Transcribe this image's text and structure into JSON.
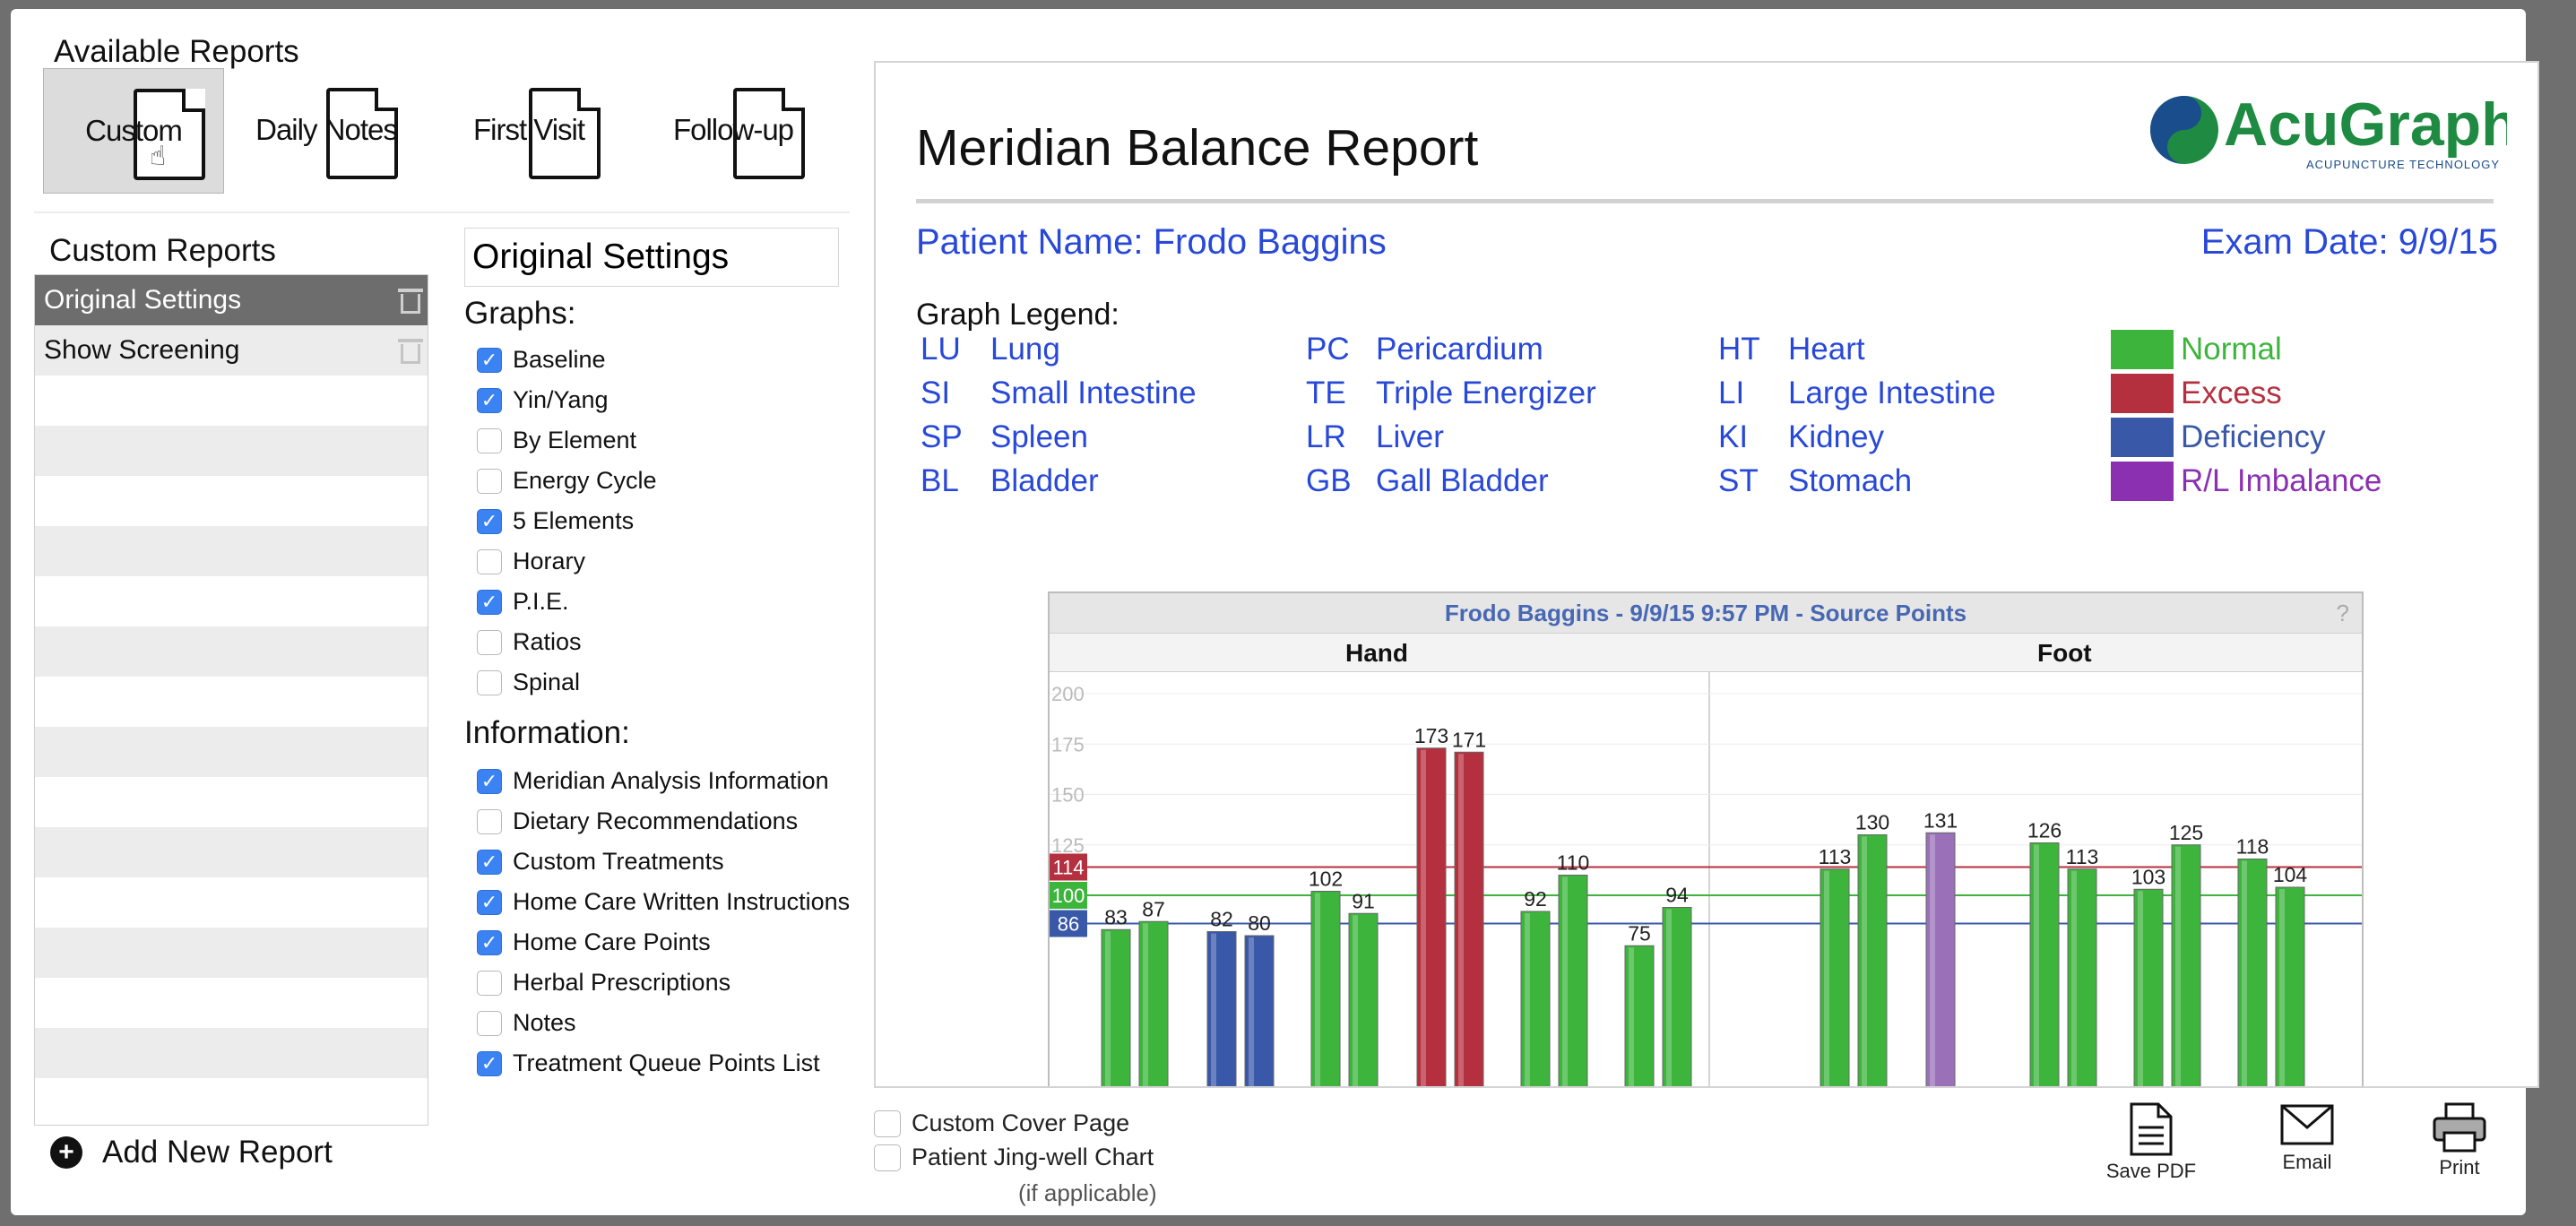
{
  "top_tabs": [
    "",
    "",
    "",
    "",
    "",
    ""
  ],
  "left": {
    "available_title": "Available Reports",
    "reports": [
      {
        "label": "Custom",
        "icon": "document-icon",
        "selected": true
      },
      {
        "label": "Daily Notes",
        "icon": "document-icon",
        "selected": false
      },
      {
        "label": "First Visit",
        "icon": "document-icon",
        "selected": false
      },
      {
        "label": "Follow-up",
        "icon": "document-icon",
        "selected": false
      }
    ],
    "custom_reports_title": "Custom Reports",
    "custom_reports": [
      {
        "label": "Original Settings",
        "selected": true
      },
      {
        "label": "Show Screening",
        "selected": false
      }
    ],
    "add_new_label": "Add New Report"
  },
  "settings": {
    "name_value": "Original Settings",
    "graphs_title": "Graphs:",
    "graphs": [
      {
        "label": "Baseline",
        "checked": true
      },
      {
        "label": "Yin/Yang",
        "checked": true
      },
      {
        "label": "By Element",
        "checked": false
      },
      {
        "label": "Energy Cycle",
        "checked": false
      },
      {
        "label": "5 Elements",
        "checked": true
      },
      {
        "label": "Horary",
        "checked": false
      },
      {
        "label": "P.I.E.",
        "checked": true
      },
      {
        "label": "Ratios",
        "checked": false
      },
      {
        "label": "Spinal",
        "checked": false
      }
    ],
    "info_title": "Information:",
    "information": [
      {
        "label": "Meridian Analysis Information",
        "checked": true
      },
      {
        "label": "Dietary Recommendations",
        "checked": false
      },
      {
        "label": "Custom Treatments",
        "checked": true
      },
      {
        "label": "Home Care Written Instructions",
        "checked": true
      },
      {
        "label": "Home Care Points",
        "checked": true
      },
      {
        "label": "Herbal Prescriptions",
        "checked": false
      },
      {
        "label": "Notes",
        "checked": false
      },
      {
        "label": "Treatment Queue Points List",
        "checked": true
      }
    ]
  },
  "report": {
    "title": "Meridian Balance Report",
    "logo_text": "AcuGraph",
    "logo_tagline": "ACUPUNCTURE TECHNOLOGY",
    "patient": "Patient Name: Frodo Baggins",
    "exam_date": "Exam Date: 9/9/15",
    "legend_title": "Graph Legend:",
    "legend": [
      [
        {
          "code": "LU",
          "name": "Lung"
        },
        {
          "code": "SI",
          "name": "Small Intestine"
        },
        {
          "code": "SP",
          "name": "Spleen"
        },
        {
          "code": "BL",
          "name": "Bladder"
        }
      ],
      [
        {
          "code": "PC",
          "name": "Pericardium"
        },
        {
          "code": "TE",
          "name": "Triple Energizer"
        },
        {
          "code": "LR",
          "name": "Liver"
        },
        {
          "code": "GB",
          "name": "Gall Bladder"
        }
      ],
      [
        {
          "code": "HT",
          "name": "Heart"
        },
        {
          "code": "LI",
          "name": "Large Intestine"
        },
        {
          "code": "KI",
          "name": "Kidney"
        },
        {
          "code": "ST",
          "name": "Stomach"
        }
      ]
    ],
    "status": [
      {
        "label": "Normal",
        "color": "#3db53d"
      },
      {
        "label": "Excess",
        "color": "#b5303f"
      },
      {
        "label": "Deficiency",
        "color": "#3a58a8"
      },
      {
        "label": "R/L Imbalance",
        "color": "#8a30b0"
      }
    ]
  },
  "chart_data": {
    "type": "bar",
    "title": "Frodo Baggins - 9/9/15 9:57 PM - Source Points",
    "help": "?",
    "groups": [
      "Hand",
      "Foot"
    ],
    "ylim": [
      0,
      200
    ],
    "ytick_labels": [
      "200",
      "175",
      "150",
      "125",
      ""
    ],
    "reference_lines": [
      {
        "value": 114,
        "label": "114",
        "color": "#b5303f"
      },
      {
        "value": 100,
        "label": "100",
        "color": "#3db53d"
      },
      {
        "value": 86,
        "label": "86",
        "color": "#3a58a8"
      }
    ],
    "bars": [
      {
        "value": 83,
        "color": "#3db53d"
      },
      {
        "value": 87,
        "color": "#3db53d"
      },
      {
        "value": 82,
        "color": "#3a58a8"
      },
      {
        "value": 80,
        "color": "#3a58a8"
      },
      {
        "value": 102,
        "color": "#3db53d"
      },
      {
        "value": 91,
        "color": "#3db53d"
      },
      {
        "value": 173,
        "color": "#b5303f"
      },
      {
        "value": 171,
        "color": "#b5303f"
      },
      {
        "value": 92,
        "color": "#3db53d"
      },
      {
        "value": 110,
        "color": "#3db53d"
      },
      {
        "value": 75,
        "color": "#3db53d"
      },
      {
        "value": 94,
        "color": "#3db53d"
      },
      {
        "value": 113,
        "color": "#3db53d"
      },
      {
        "value": 130,
        "color": "#3db53d"
      },
      {
        "value": 131,
        "color": "#9a70b8"
      },
      {
        "value": 126,
        "color": "#3db53d"
      },
      {
        "value": 113,
        "color": "#3db53d"
      },
      {
        "value": 103,
        "color": "#3db53d"
      },
      {
        "value": 125,
        "color": "#3db53d"
      },
      {
        "value": 118,
        "color": "#3db53d"
      },
      {
        "value": 104,
        "color": "#3db53d"
      }
    ]
  },
  "bottom": {
    "options": [
      {
        "label": "Custom Cover Page",
        "checked": false
      },
      {
        "label": "Patient Jing-well Chart",
        "checked": false
      }
    ],
    "note": "(if applicable)",
    "actions": [
      {
        "label": "Save PDF",
        "icon": "pdf-icon"
      },
      {
        "label": "Email",
        "icon": "email-icon"
      },
      {
        "label": "Print",
        "icon": "printer-icon"
      }
    ]
  }
}
